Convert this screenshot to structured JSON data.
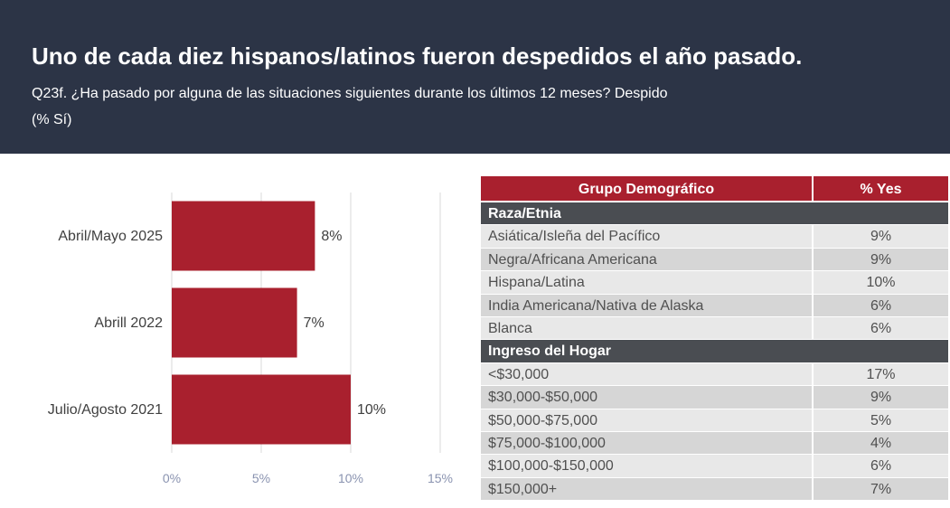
{
  "header": {
    "title": "Uno de cada diez hispanos/latinos fueron despedidos el año pasado.",
    "subtitle_line1": "Q23f. ¿Ha pasado por alguna de las situaciones siguientes durante los últimos 12 meses? Despido",
    "subtitle_line2": "(% Sí)"
  },
  "colors": {
    "header_bg": "#2c3446",
    "bar": "#a9202e",
    "table_head": "#a9202e",
    "group_row": "#4a4d52"
  },
  "chart_data": {
    "type": "bar",
    "orientation": "horizontal",
    "categories": [
      "Abril/Mayo 2025",
      "Abrill 2022",
      "Julio/Agosto 2021"
    ],
    "values": [
      8,
      7,
      10
    ],
    "value_labels": [
      "8%",
      "7%",
      "10%"
    ],
    "xlim": [
      0,
      15
    ],
    "x_ticks": [
      0,
      5,
      10,
      15
    ],
    "x_tick_labels": [
      "0%",
      "5%",
      "10%",
      "15%"
    ],
    "grid": true
  },
  "table": {
    "headers": [
      "Grupo Demográfico",
      "% Yes"
    ],
    "groups": [
      {
        "name": "Raza/Etnia",
        "rows": [
          [
            "Asiática/Isleña del Pacífico",
            "9%"
          ],
          [
            "Negra/Africana Americana",
            "9%"
          ],
          [
            "Hispana/Latina",
            "10%"
          ],
          [
            "India Americana/Nativa de Alaska",
            "6%"
          ],
          [
            "Blanca",
            "6%"
          ]
        ]
      },
      {
        "name": "Ingreso del Hogar",
        "rows": [
          [
            "<$30,000",
            "17%"
          ],
          [
            "$30,000-$50,000",
            "9%"
          ],
          [
            "$50,000-$75,000",
            "5%"
          ],
          [
            "$75,000-$100,000",
            "4%"
          ],
          [
            "$100,000-$150,000",
            "6%"
          ],
          [
            "$150,000+",
            "7%"
          ]
        ]
      }
    ]
  }
}
